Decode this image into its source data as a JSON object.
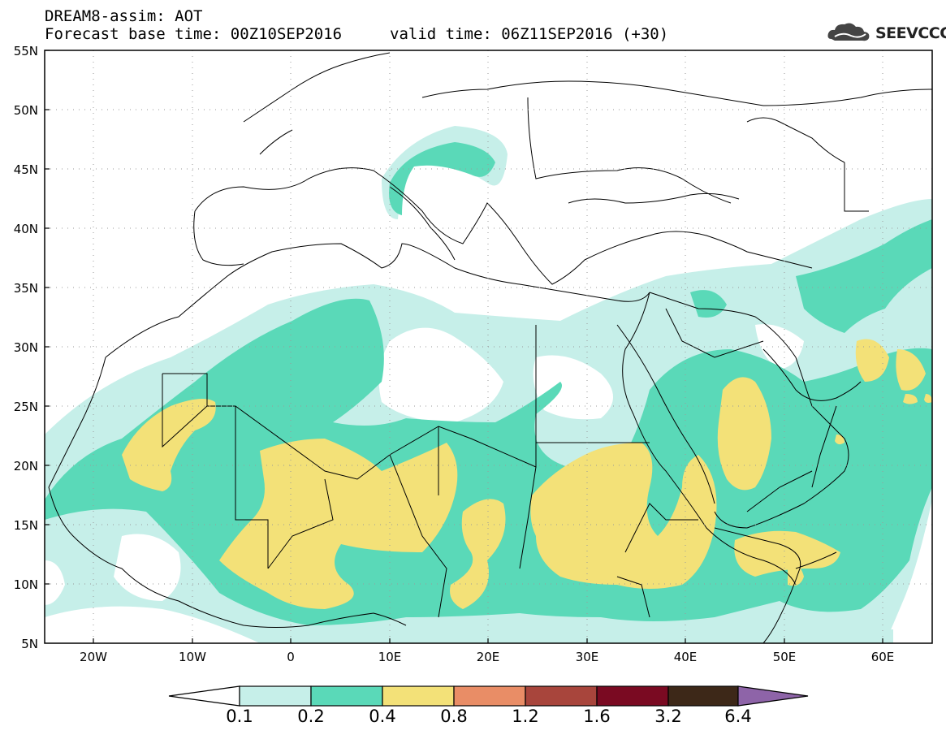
{
  "header": {
    "line1": "DREAM8-assim: AOT",
    "line2": "Forecast base time: 00Z10SEP2016",
    "valid": "valid time: 06Z11SEP2016 (+30)"
  },
  "logo": {
    "name": "cloud-logo",
    "text": "SEEVCCC"
  },
  "map": {
    "lon_range": [
      -25,
      65
    ],
    "lat_range": [
      5,
      55
    ],
    "lat_labels": [
      "55N",
      "50N",
      "45N",
      "40N",
      "35N",
      "30N",
      "25N",
      "20N",
      "15N",
      "10N",
      "5N"
    ],
    "lon_labels": [
      "20W",
      "10W",
      "0",
      "10E",
      "20E",
      "30E",
      "40E",
      "50E",
      "60E"
    ],
    "grid": true
  },
  "colorbar": {
    "labels": [
      "0.1",
      "0.2",
      "0.4",
      "0.8",
      "1.2",
      "1.6",
      "3.2",
      "6.4"
    ],
    "colors": [
      "#ffffff",
      "#c6efe9",
      "#5ad9b8",
      "#f3e178",
      "#e98d66",
      "#a8453c",
      "#7a0a22",
      "#3d2818",
      "#8e64a8"
    ]
  }
}
